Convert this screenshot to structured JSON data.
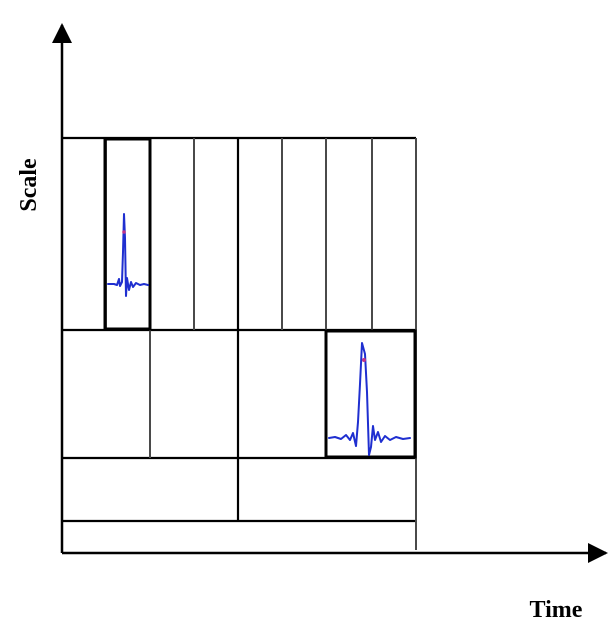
{
  "diagram": {
    "y_axis_label": "Scale",
    "x_axis_label": "Time",
    "colors": {
      "lines": "#000000",
      "wavelet": "#1f2fd0",
      "wavelet_peak": "#c0348a",
      "background": "#ffffff"
    },
    "scale_levels": [
      {
        "level": 1,
        "cells": 8
      },
      {
        "level": 2,
        "cells": 4
      },
      {
        "level": 3,
        "cells": 2
      },
      {
        "level": 4,
        "cells": 1
      }
    ],
    "highlighted_cells": [
      {
        "level": 1,
        "cell_index": 1,
        "content": "narrow-wavelet"
      },
      {
        "level": 2,
        "cell_index": 4,
        "content": "wide-wavelet"
      }
    ]
  }
}
